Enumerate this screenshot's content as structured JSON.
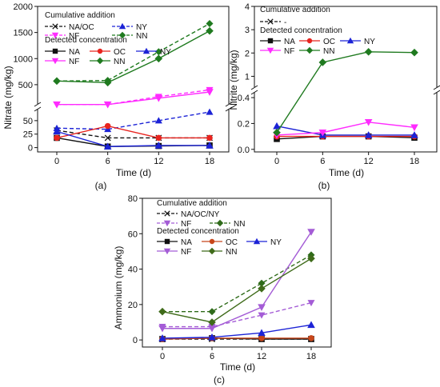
{
  "colors": {
    "NA": "#111111",
    "OC": "#e8241f",
    "NY": "#1c23d6",
    "NF": "#ff2bff",
    "NN": "#1f7a1f",
    "NF_c": "#a45cd6",
    "NN_c": "#3f6b1a",
    "NA_c": "#111111",
    "OC_c": "#c8461a",
    "NY_c": "#1c23d6",
    "NF_cum_c": "#a45cd6",
    "NN_cum_c": "#2f6b1a"
  },
  "chart_data": [
    {
      "panel": "(a)",
      "type": "line",
      "xlabel": "Time (d)",
      "ylabel": "Nitrate (mg/kg)",
      "x": [
        0,
        6,
        12,
        18
      ],
      "xticks": [
        "0",
        "6",
        "12",
        "18"
      ],
      "broken_axis": true,
      "ylim_lower": [
        -8,
        75
      ],
      "ylim_upper": [
        100,
        2000
      ],
      "yticks_lower": [
        "0",
        "25",
        "50"
      ],
      "yticks_upper": [
        "500",
        "1000",
        "1500",
        "2000"
      ],
      "legend_title_1": "Cumulative addition",
      "legend_title_2": "Detected concentration",
      "legend_cum": [
        "NA/OC",
        "NY",
        "NF",
        "NN"
      ],
      "legend_det": [
        "NA",
        "OC",
        "NY",
        "NF",
        "NN"
      ],
      "series": [
        {
          "name": "NA/OC",
          "kind": "cumulative",
          "ckey": "NA",
          "marker": "x",
          "values": [
            32,
            18,
            18,
            18
          ]
        },
        {
          "name": "NY",
          "kind": "cumulative",
          "ckey": "NY",
          "marker": "tri-up",
          "values": [
            36,
            34,
            50,
            66
          ]
        },
        {
          "name": "NF",
          "kind": "cumulative",
          "ckey": "NF",
          "marker": "tri-down",
          "values": [
            120,
            120,
            270,
            400
          ]
        },
        {
          "name": "NN",
          "kind": "cumulative",
          "ckey": "NN",
          "marker": "diamond",
          "values": [
            570,
            580,
            1130,
            1670
          ]
        },
        {
          "name": "NA",
          "kind": "detected",
          "ckey": "NA",
          "marker": "square",
          "values": [
            18,
            2,
            3,
            4
          ]
        },
        {
          "name": "OC",
          "kind": "detected",
          "ckey": "OC",
          "marker": "circle",
          "values": [
            18,
            40,
            18,
            18
          ]
        },
        {
          "name": "NY",
          "kind": "detected",
          "ckey": "NY",
          "marker": "tri-up",
          "values": [
            30,
            2,
            4,
            4
          ]
        },
        {
          "name": "NF",
          "kind": "detected",
          "ckey": "NF",
          "marker": "tri-down",
          "values": [
            120,
            120,
            240,
            360
          ]
        },
        {
          "name": "NN",
          "kind": "detected",
          "ckey": "NN",
          "marker": "diamond",
          "values": [
            570,
            540,
            1000,
            1530
          ]
        }
      ]
    },
    {
      "panel": "(b)",
      "type": "line",
      "xlabel": "Time (d)",
      "ylabel": "Nitrite (mg/kg)",
      "x": [
        0,
        6,
        12,
        18
      ],
      "xticks": [
        "0",
        "6",
        "12",
        "18"
      ],
      "broken_axis": true,
      "ylim_lower": [
        -0.02,
        0.45
      ],
      "ylim_upper": [
        0.5,
        4
      ],
      "yticks_lower": [
        "0.0",
        "0.2",
        "0.4"
      ],
      "yticks_upper": [
        "1",
        "2",
        "3",
        "4"
      ],
      "legend_title_1": "Cumulative addition",
      "legend_title_2": "Detected concentration",
      "legend_cum": [
        "-"
      ],
      "legend_det": [
        "NA",
        "OC",
        "NY",
        "NF",
        "NN"
      ],
      "series": [
        {
          "name": "NA",
          "kind": "detected",
          "ckey": "NA",
          "marker": "square",
          "values": [
            0.08,
            0.1,
            0.1,
            0.09
          ]
        },
        {
          "name": "OC",
          "kind": "detected",
          "ckey": "OC",
          "marker": "circle",
          "values": [
            0.1,
            0.1,
            0.1,
            0.1
          ]
        },
        {
          "name": "NY",
          "kind": "detected",
          "ckey": "NY",
          "marker": "tri-up",
          "values": [
            0.18,
            0.11,
            0.11,
            0.11
          ]
        },
        {
          "name": "NF",
          "kind": "detected",
          "ckey": "NF",
          "marker": "tri-down",
          "values": [
            0.11,
            0.13,
            0.21,
            0.17
          ]
        },
        {
          "name": "NN",
          "kind": "detected",
          "ckey": "NN",
          "marker": "diamond",
          "values": [
            0.13,
            1.6,
            2.05,
            2.02
          ]
        }
      ]
    },
    {
      "panel": "(c)",
      "type": "line",
      "xlabel": "Time (d)",
      "ylabel": "Ammonium (mg/kg)",
      "x": [
        0,
        6,
        12,
        18
      ],
      "xticks": [
        "0",
        "6",
        "12",
        "18"
      ],
      "ylim": [
        -4,
        80
      ],
      "yticks": [
        "0",
        "20",
        "40",
        "60",
        "80"
      ],
      "legend_title_1": "Cumulative addition",
      "legend_title_2": "Detected concentration",
      "legend_cum": [
        "NA/OC/NY",
        "NF",
        "NN"
      ],
      "legend_det": [
        "NA",
        "OC",
        "NY",
        "NF",
        "NN"
      ],
      "series": [
        {
          "name": "NA/OC/NY",
          "kind": "cumulative",
          "ckey": "NA_c",
          "marker": "x",
          "values": [
            0.5,
            0.5,
            0.5,
            0.5
          ]
        },
        {
          "name": "NF",
          "kind": "cumulative",
          "ckey": "NF_cum_c",
          "marker": "tri-down",
          "values": [
            7.5,
            7.5,
            14,
            21
          ]
        },
        {
          "name": "NN",
          "kind": "cumulative",
          "ckey": "NN_cum_c",
          "marker": "diamond",
          "values": [
            16,
            16,
            32,
            48
          ]
        },
        {
          "name": "NA",
          "kind": "detected",
          "ckey": "NA_c",
          "marker": "square",
          "values": [
            0.5,
            1,
            0.5,
            0.5
          ]
        },
        {
          "name": "OC",
          "kind": "detected",
          "ckey": "OC_c",
          "marker": "circle",
          "values": [
            0.5,
            1,
            1,
            1
          ]
        },
        {
          "name": "NY",
          "kind": "detected",
          "ckey": "NY_c",
          "marker": "tri-up",
          "values": [
            1,
            1.5,
            4,
            8.5
          ]
        },
        {
          "name": "NF",
          "kind": "detected",
          "ckey": "NF_c",
          "marker": "tri-down",
          "values": [
            6.5,
            6.5,
            18.5,
            61
          ]
        },
        {
          "name": "NN",
          "kind": "detected",
          "ckey": "NN_c",
          "marker": "diamond",
          "values": [
            16,
            10,
            29,
            46
          ]
        }
      ]
    }
  ]
}
